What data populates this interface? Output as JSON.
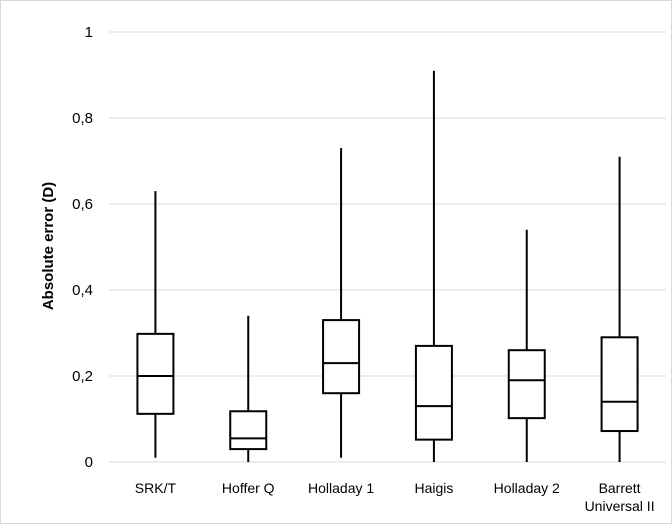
{
  "chart_data": {
    "type": "box",
    "title": "",
    "xlabel": "",
    "ylabel": "Absolute error (D)",
    "ylim": [
      0,
      1
    ],
    "yticks": [
      0,
      0.2,
      0.4,
      0.6,
      0.8,
      1
    ],
    "ytick_labels": [
      "0",
      "0,2",
      "0,4",
      "0,6",
      "0,8",
      "1"
    ],
    "grid": true,
    "categories": [
      {
        "lines": [
          "SRK/T"
        ]
      },
      {
        "lines": [
          "Hoffer Q"
        ]
      },
      {
        "lines": [
          "Holladay 1"
        ]
      },
      {
        "lines": [
          "Haigis"
        ]
      },
      {
        "lines": [
          "Holladay 2"
        ]
      },
      {
        "lines": [
          "Barrett",
          "Universal II"
        ]
      }
    ],
    "boxes": [
      {
        "min": 0.01,
        "q1": 0.112,
        "median": 0.2,
        "q3": 0.298,
        "max": 0.63
      },
      {
        "min": 0.0,
        "q1": 0.03,
        "median": 0.055,
        "q3": 0.118,
        "max": 0.34
      },
      {
        "min": 0.01,
        "q1": 0.16,
        "median": 0.23,
        "q3": 0.33,
        "max": 0.73
      },
      {
        "min": 0.0,
        "q1": 0.052,
        "median": 0.13,
        "q3": 0.27,
        "max": 0.91
      },
      {
        "min": 0.0,
        "q1": 0.102,
        "median": 0.19,
        "q3": 0.26,
        "max": 0.54
      },
      {
        "min": 0.0,
        "q1": 0.072,
        "median": 0.14,
        "q3": 0.29,
        "max": 0.71
      }
    ],
    "colors": {
      "box_stroke": "#000000",
      "box_fill": "#ffffff",
      "grid": "#d9d9d9"
    }
  }
}
